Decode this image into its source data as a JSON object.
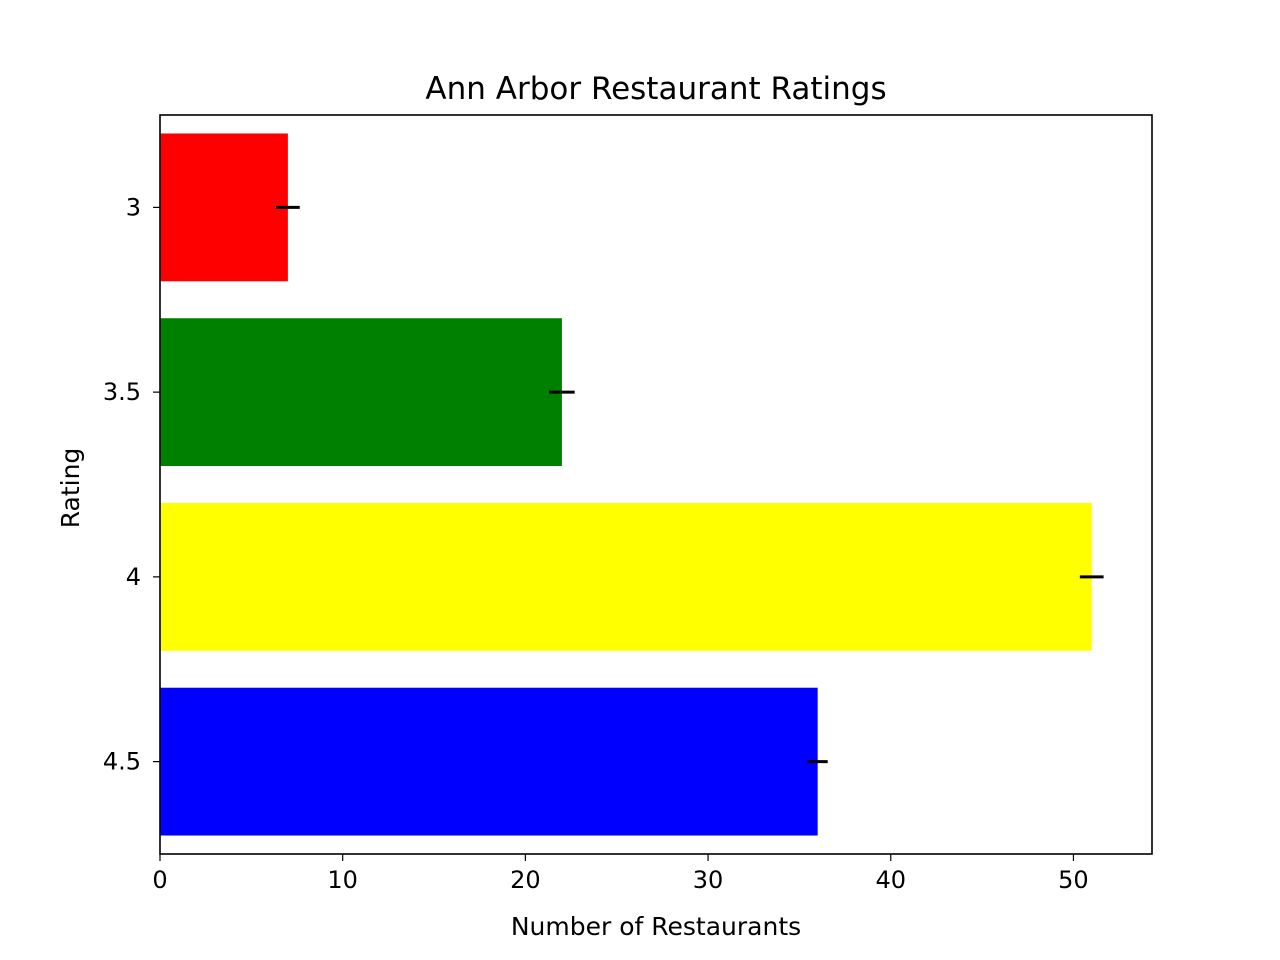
{
  "chart_data": {
    "type": "bar",
    "orientation": "horizontal",
    "title": "Ann Arbor Restaurant Ratings",
    "xlabel": "Number of Restaurants",
    "ylabel": "Rating",
    "categories": [
      "3",
      "3.5",
      "4",
      "4.5"
    ],
    "values": [
      7,
      22,
      51,
      36
    ],
    "error": [
      0.65,
      0.7,
      0.65,
      0.55
    ],
    "colors": [
      "#ff0000",
      "#008000",
      "#ffff00",
      "#0000ff"
    ],
    "error_color": "#000000",
    "xlim": [
      0,
      54.3
    ],
    "xticks": [
      0,
      10,
      20,
      30,
      40,
      50
    ],
    "xtick_labels": [
      "0",
      "10",
      "20",
      "30",
      "40",
      "50"
    ],
    "grid": false,
    "legend": "none"
  }
}
